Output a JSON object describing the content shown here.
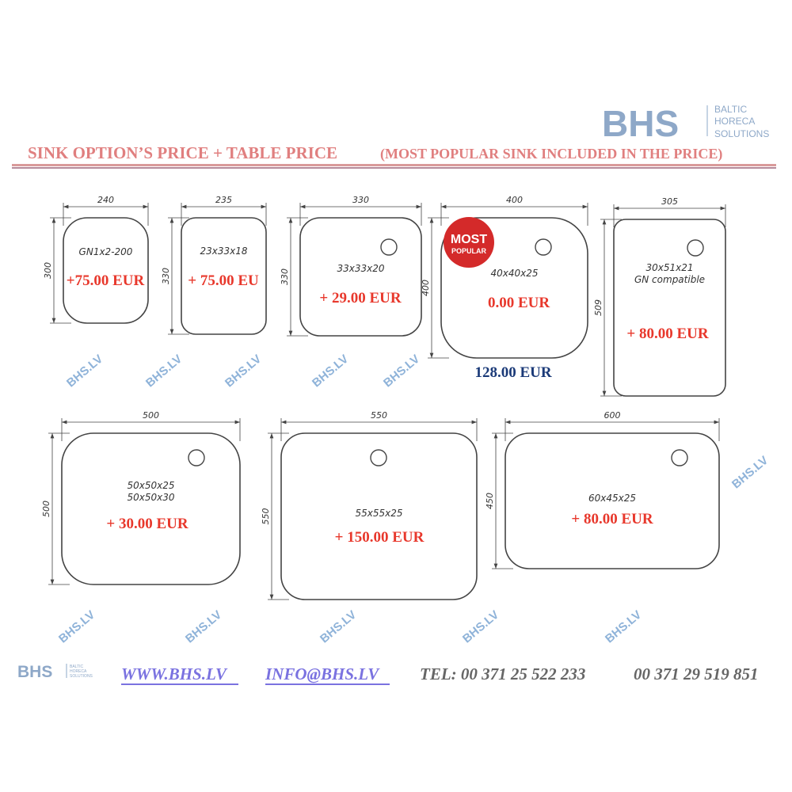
{
  "header": {
    "logo": {
      "mark": "BHS",
      "line1": "BALTIC",
      "line2": "HORECA",
      "line3": "SOLUTIONS"
    },
    "title": "SINK OPTION’S PRICE + TABLE PRICE",
    "subtitle": "(MOST POPULAR SINK INCLUDED IN THE PRICE)"
  },
  "watermark": "BHS.LV",
  "badge": {
    "line1": "MOST",
    "line2": "POPULAR",
    "color": "#d42a2a"
  },
  "colors": {
    "price": "#e8382c",
    "base_price": "#1b3a78",
    "title": "#e07f7f",
    "logo": "#8ea8c8"
  },
  "sinks": [
    {
      "width": "240",
      "height": "300",
      "name": "GN1x2-200",
      "price": "+75.00 EUR"
    },
    {
      "width": "235",
      "height": "330",
      "name": "23x33x18",
      "price": "+ 75.00 EU"
    },
    {
      "width": "330",
      "height": "330",
      "name": "33x33x20",
      "price": "+ 29.00 EUR"
    },
    {
      "width": "400",
      "height": "400",
      "name": "40x40x25",
      "price": "0.00 EUR",
      "base_price": "128.00 EUR"
    },
    {
      "width": "305",
      "height": "509",
      "name": "30x51x21",
      "name2": "GN compatible",
      "price": "+ 80.00 EUR"
    },
    {
      "width": "500",
      "height": "500",
      "name": "50x50x25",
      "name2": "50x50x30",
      "price": "+ 30.00 EUR"
    },
    {
      "width": "550",
      "height": "550",
      "name": "55x55x25",
      "price": "+ 150.00 EUR"
    },
    {
      "width": "600",
      "height": "450",
      "name": "60x45x25",
      "price": "+ 80.00 EUR"
    }
  ],
  "footer": {
    "logo": {
      "mark": "BHS",
      "line1": "BALTIC",
      "line2": "HORECA",
      "line3": "SOLUTIONS"
    },
    "website": "WWW.BHS.LV",
    "email": "INFO@BHS.LV",
    "phone1": "TEL: 00 371  25 522 233",
    "phone2": "00 371 29 519 851"
  }
}
